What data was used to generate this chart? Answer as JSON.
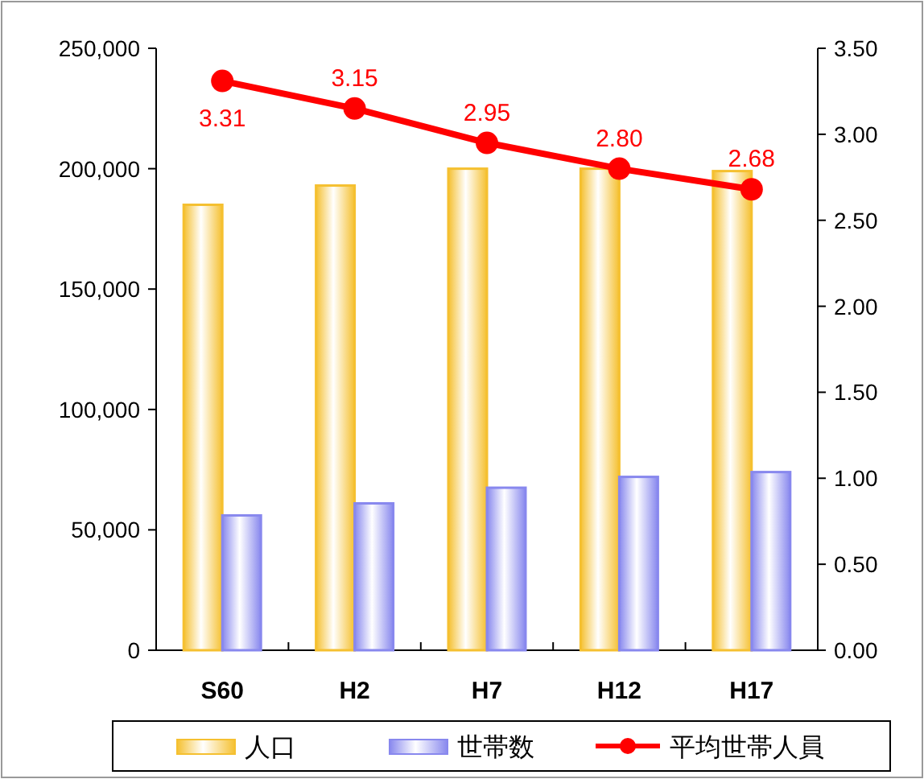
{
  "chart_data": {
    "type": "bar",
    "categories": [
      "S60",
      "H2",
      "H7",
      "H12",
      "H17"
    ],
    "series": [
      {
        "name": "人口",
        "color": "#f5c030",
        "values": [
          185000,
          193000,
          200000,
          200000,
          199000
        ]
      },
      {
        "name": "世帯数",
        "color": "#8888ee",
        "values": [
          56000,
          61000,
          67500,
          72000,
          74000
        ]
      },
      {
        "name": "平均世帯人員",
        "type": "line",
        "axis": "y2",
        "color": "#ff0000",
        "marker": "circle",
        "values": [
          3.31,
          3.15,
          2.95,
          2.8,
          2.68
        ],
        "value_labels": [
          "3.31",
          "3.15",
          "2.95",
          "2.80",
          "2.68"
        ]
      }
    ],
    "ylim": [
      0,
      250000
    ],
    "yticks": [
      {
        "value": 0,
        "label": "0"
      },
      {
        "value": 50000,
        "label": "50,000"
      },
      {
        "value": 100000,
        "label": "100,000"
      },
      {
        "value": 150000,
        "label": "150,000"
      },
      {
        "value": 200000,
        "label": "200,000"
      },
      {
        "value": 250000,
        "label": "250,000"
      }
    ],
    "y2lim": [
      0,
      3.5
    ],
    "y2ticks": [
      {
        "value": 0,
        "label": "0.00"
      },
      {
        "value": 0.5,
        "label": "0.50"
      },
      {
        "value": 1,
        "label": "1.00"
      },
      {
        "value": 1.5,
        "label": "1.50"
      },
      {
        "value": 2,
        "label": "2.00"
      },
      {
        "value": 2.5,
        "label": "2.50"
      },
      {
        "value": 3,
        "label": "3.00"
      },
      {
        "value": 3.5,
        "label": "3.50"
      }
    ],
    "grid": false,
    "legend": "bottom"
  }
}
